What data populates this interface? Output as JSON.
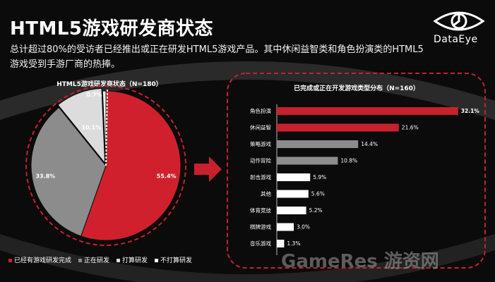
{
  "header": {
    "title": "HTML5游戏研发商状态",
    "subtitle": "总计超过80%的受访者已经推出或正在研发HTML5游戏产品。其中休闲益智类和角色扮演类的HTML5游戏受到手游厂商的热捧。",
    "logo_text": "DataEye"
  },
  "watermark": "GameRes 游资网",
  "colors": {
    "red": "#d0202e",
    "gray": "#8c8c8c",
    "light": "#dcdcdc",
    "white": "#ffffff",
    "accent": "#c8202c"
  },
  "chart_data": [
    {
      "type": "pie",
      "title": "HTML5游戏研发商状态（N=180）",
      "slices": [
        {
          "name": "已经有游戏研发完成",
          "value": 55.4,
          "label": "55.4%",
          "color": "#d0202e"
        },
        {
          "name": "正在研发",
          "value": 33.8,
          "label": "33.8%",
          "color": "#8c8c8c"
        },
        {
          "name": "打算研发",
          "value": 10.1,
          "label": "10.1%",
          "color": "#dcdcdc"
        },
        {
          "name": "不打算研发",
          "value": 0.7,
          "label": "0.7%",
          "color": "#ffffff"
        }
      ],
      "legend_position": "bottom"
    },
    {
      "type": "bar",
      "orientation": "horizontal",
      "title": "已完成或正在开发游戏类型分布（N=160）",
      "categories": [
        "角色扮演",
        "休闲益智",
        "策略游戏",
        "动作冒险",
        "射击游戏",
        "其他",
        "体育竞技",
        "棋牌游戏",
        "音乐游戏"
      ],
      "values": [
        32.1,
        21.6,
        14.4,
        10.8,
        5.9,
        5.6,
        5.2,
        3.0,
        1.3
      ],
      "labels": [
        "32.1%",
        "21.6%",
        "14.4%",
        "10.8%",
        "5.9%",
        "5.6%",
        "5.2%",
        "3.0%",
        "1.3%"
      ],
      "colors": [
        "#c8202c",
        "#c8202c",
        "#8c8c8c",
        "#8c8c8c",
        "#ffffff",
        "#ffffff",
        "#ffffff",
        "#ffffff",
        "#ffffff"
      ],
      "xlim": [
        0,
        35
      ]
    }
  ]
}
